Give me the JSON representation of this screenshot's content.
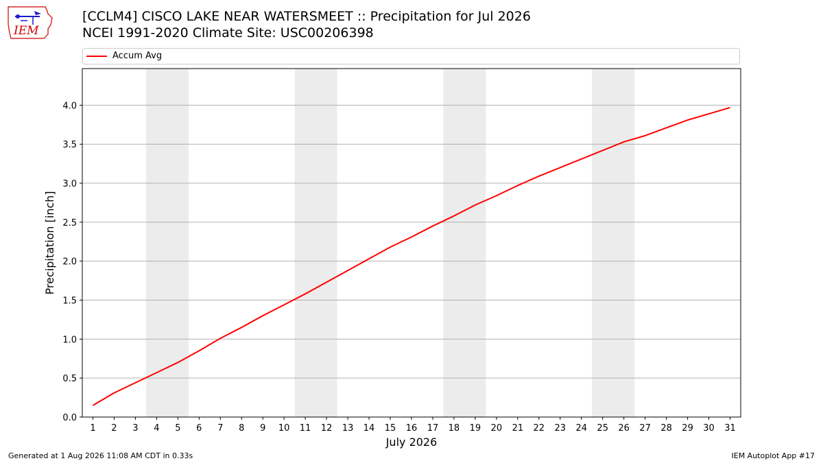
{
  "header": {
    "title_line1": "[CCLM4] CISCO LAKE NEAR WATERSMEET :: Precipitation for Jul 2026",
    "title_line2": "NCEI 1991-2020 Climate Site: USC00206398"
  },
  "logo": {
    "text": "IEM"
  },
  "footer": {
    "generated": "Generated at 1 Aug 2026 11:08 AM CDT in 0.33s",
    "app": "IEM Autoplot App #17"
  },
  "chart_data": {
    "type": "line",
    "xlabel": "July 2026",
    "ylabel": "Precipitation [inch]",
    "xlim": [
      0.5,
      31.5
    ],
    "ylim": [
      0,
      4.47
    ],
    "yticks": [
      0.0,
      0.5,
      1.0,
      1.5,
      2.0,
      2.5,
      3.0,
      3.5,
      4.0
    ],
    "ytick_labels": [
      "0.0",
      "0.5",
      "1.0",
      "1.5",
      "2.0",
      "2.5",
      "3.0",
      "3.5",
      "4.0"
    ],
    "x": [
      1,
      2,
      3,
      4,
      5,
      6,
      7,
      8,
      9,
      10,
      11,
      12,
      13,
      14,
      15,
      16,
      17,
      18,
      19,
      20,
      21,
      22,
      23,
      24,
      25,
      26,
      27,
      28,
      29,
      30,
      31
    ],
    "xtick_labels": [
      "1",
      "2",
      "3",
      "4",
      "5",
      "6",
      "7",
      "8",
      "9",
      "10",
      "11",
      "12",
      "13",
      "14",
      "15",
      "16",
      "17",
      "18",
      "19",
      "20",
      "21",
      "22",
      "23",
      "24",
      "25",
      "26",
      "27",
      "28",
      "29",
      "30",
      "31"
    ],
    "weekend_bands": [
      [
        3.5,
        5.5
      ],
      [
        10.5,
        12.5
      ],
      [
        17.5,
        19.5
      ],
      [
        24.5,
        26.5
      ]
    ],
    "grid": "y",
    "legend": "top",
    "series": [
      {
        "name": "Accum Avg",
        "color": "#ff0000",
        "values": [
          0.15,
          0.31,
          0.44,
          0.57,
          0.7,
          0.85,
          1.01,
          1.15,
          1.3,
          1.44,
          1.58,
          1.73,
          1.88,
          2.03,
          2.18,
          2.31,
          2.45,
          2.58,
          2.72,
          2.84,
          2.97,
          3.09,
          3.2,
          3.31,
          3.42,
          3.53,
          3.61,
          3.71,
          3.81,
          3.89,
          3.97
        ]
      }
    ]
  }
}
